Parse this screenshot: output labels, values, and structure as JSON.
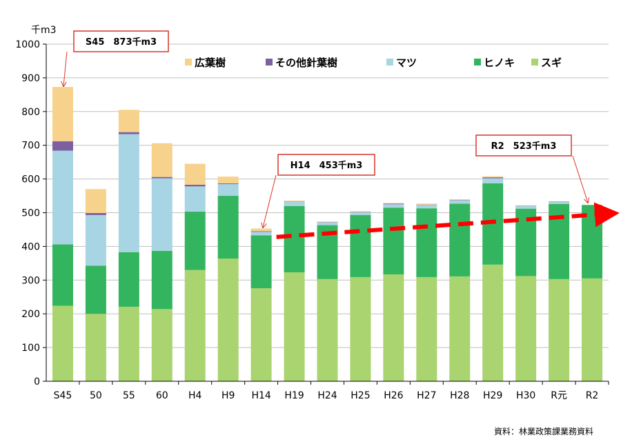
{
  "chart_data": {
    "type": "bar",
    "stacked": true,
    "unit_label": "千m3",
    "ylim": [
      0,
      1000
    ],
    "yticks": [
      0,
      100,
      200,
      300,
      400,
      500,
      600,
      700,
      800,
      900,
      1000
    ],
    "grid": true,
    "categories": [
      "S45",
      "50",
      "55",
      "60",
      "H4",
      "H9",
      "H14",
      "H19",
      "H24",
      "H25",
      "H26",
      "H27",
      "H28",
      "H29",
      "H30",
      "R元",
      "R2"
    ],
    "series": [
      {
        "name": "スギ",
        "color": "#a9d46f",
        "values": [
          224,
          200,
          221,
          214,
          330,
          364,
          276,
          323,
          303,
          309,
          317,
          309,
          311,
          346,
          312,
          303,
          305
        ]
      },
      {
        "name": "ヒノキ",
        "color": "#33b55f",
        "values": [
          182,
          143,
          162,
          173,
          173,
          186,
          157,
          197,
          160,
          184,
          198,
          204,
          216,
          241,
          200,
          223,
          218
        ]
      },
      {
        "name": "マツ",
        "color": "#a8d5e3",
        "values": [
          278,
          150,
          350,
          215,
          75,
          35,
          10,
          12,
          8,
          8,
          10,
          10,
          10,
          15,
          8,
          6,
          0
        ]
      },
      {
        "name": "その他針葉樹",
        "color": "#7d60a0",
        "values": [
          28,
          6,
          6,
          4,
          5,
          2,
          2,
          1,
          1,
          1,
          2,
          1,
          1,
          3,
          1,
          1,
          0
        ]
      },
      {
        "name": "広葉樹",
        "color": "#f7d28c",
        "values": [
          161,
          71,
          66,
          100,
          62,
          20,
          8,
          3,
          2,
          2,
          2,
          3,
          2,
          3,
          1,
          1,
          0
        ]
      }
    ],
    "legend_order": [
      "広葉樹",
      "その他針葉樹",
      "マツ",
      "ヒノキ",
      "スギ"
    ],
    "annotations": [
      {
        "text": "S45　873千m3",
        "category": "S45",
        "value": 873
      },
      {
        "text": "H14　453千m3",
        "category": "H14",
        "value": 453
      },
      {
        "text": "R2　523千m3",
        "category": "R2",
        "value": 523
      }
    ],
    "trend_arrow": {
      "from_category": "H14",
      "to_category": "R2",
      "color": "#ff0000"
    },
    "source": "資料：林業政策課業務資料"
  }
}
